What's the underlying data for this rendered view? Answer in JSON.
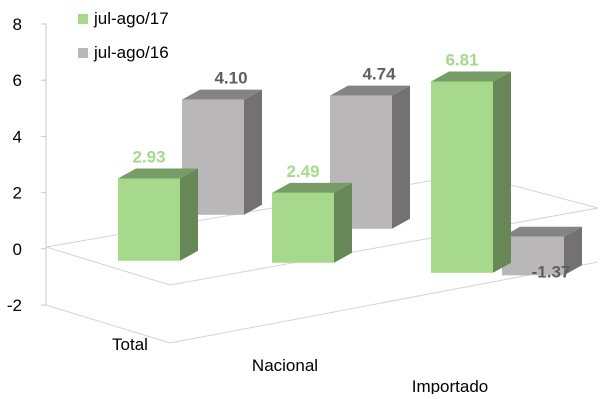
{
  "chart_data": {
    "type": "bar",
    "title": "",
    "xlabel": "",
    "ylabel": "",
    "categories": [
      "Total",
      "Nacional",
      "Importado"
    ],
    "series": [
      {
        "name": "jul-ago/17",
        "color": "#a6d98c",
        "values": [
          2.93,
          2.49,
          6.81
        ]
      },
      {
        "name": "jul-ago/16",
        "color": "#b9b7b8",
        "values": [
          4.1,
          4.74,
          -1.37
        ]
      }
    ],
    "ylim": [
      -2,
      8
    ],
    "yticks": [
      "-2",
      "0",
      "2",
      "4",
      "6",
      "8"
    ],
    "data_labels": [
      [
        "2.93",
        "2.49",
        "6.81"
      ],
      [
        "4.10",
        "4.74",
        "-1.37"
      ]
    ],
    "legend_position": "top-left",
    "grid": false,
    "three_d": true
  }
}
